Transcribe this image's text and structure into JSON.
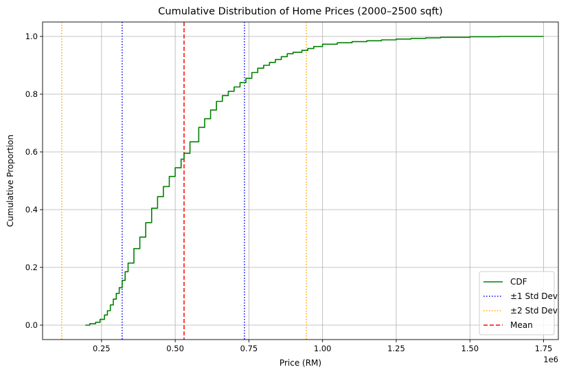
{
  "chart_data": {
    "type": "line",
    "title": "Cumulative Distribution of Home Prices (2000–2500 sqft)",
    "xlabel": "Price (RM)",
    "ylabel": "Cumulative Proportion",
    "x_offset_label": "1e6",
    "xlim": [
      0.05,
      1.8
    ],
    "ylim": [
      -0.05,
      1.05
    ],
    "x_ticks": [
      0.25,
      0.5,
      0.75,
      1.0,
      1.25,
      1.5,
      1.75
    ],
    "x_tick_labels": [
      "0.25",
      "0.50",
      "0.75",
      "1.00",
      "1.25",
      "1.50",
      "1.75"
    ],
    "y_ticks": [
      0.0,
      0.2,
      0.4,
      0.6,
      0.8,
      1.0
    ],
    "y_tick_labels": [
      "0.0",
      "0.2",
      "0.4",
      "0.6",
      "0.8",
      "1.0"
    ],
    "grid": true,
    "legend_position": "lower-right",
    "series": [
      {
        "name": "CDF",
        "color": "#008000",
        "style": "solid",
        "x": [
          0.195,
          0.21,
          0.23,
          0.245,
          0.26,
          0.27,
          0.28,
          0.29,
          0.3,
          0.31,
          0.32,
          0.33,
          0.34,
          0.36,
          0.38,
          0.4,
          0.42,
          0.44,
          0.46,
          0.48,
          0.5,
          0.52,
          0.53,
          0.55,
          0.58,
          0.6,
          0.62,
          0.64,
          0.66,
          0.68,
          0.7,
          0.72,
          0.74,
          0.76,
          0.78,
          0.8,
          0.82,
          0.84,
          0.86,
          0.88,
          0.9,
          0.93,
          0.95,
          0.97,
          1.0,
          1.05,
          1.1,
          1.15,
          1.2,
          1.25,
          1.3,
          1.35,
          1.4,
          1.5,
          1.6,
          1.75
        ],
        "y": [
          0.0,
          0.005,
          0.01,
          0.02,
          0.035,
          0.05,
          0.07,
          0.09,
          0.11,
          0.13,
          0.155,
          0.185,
          0.215,
          0.265,
          0.305,
          0.355,
          0.405,
          0.445,
          0.48,
          0.515,
          0.545,
          0.575,
          0.595,
          0.635,
          0.685,
          0.715,
          0.745,
          0.775,
          0.795,
          0.81,
          0.825,
          0.84,
          0.855,
          0.875,
          0.89,
          0.9,
          0.91,
          0.92,
          0.93,
          0.94,
          0.945,
          0.952,
          0.958,
          0.965,
          0.973,
          0.978,
          0.982,
          0.985,
          0.988,
          0.991,
          0.993,
          0.995,
          0.997,
          0.999,
          1.0,
          1.0
        ]
      }
    ],
    "vlines": [
      {
        "name": "±1 Std Dev",
        "color": "#0000ff",
        "style": "dotted",
        "x": [
          0.32,
          0.735
        ],
        "show_in_legend": true
      },
      {
        "name": "±2 Std Dev",
        "color": "#ffa500",
        "style": "dotted",
        "x": [
          0.115,
          0.945
        ],
        "show_in_legend": true
      },
      {
        "name": "Mean",
        "color": "#ff0000",
        "style": "dashed",
        "x": [
          0.53
        ],
        "show_in_legend": true
      }
    ]
  }
}
